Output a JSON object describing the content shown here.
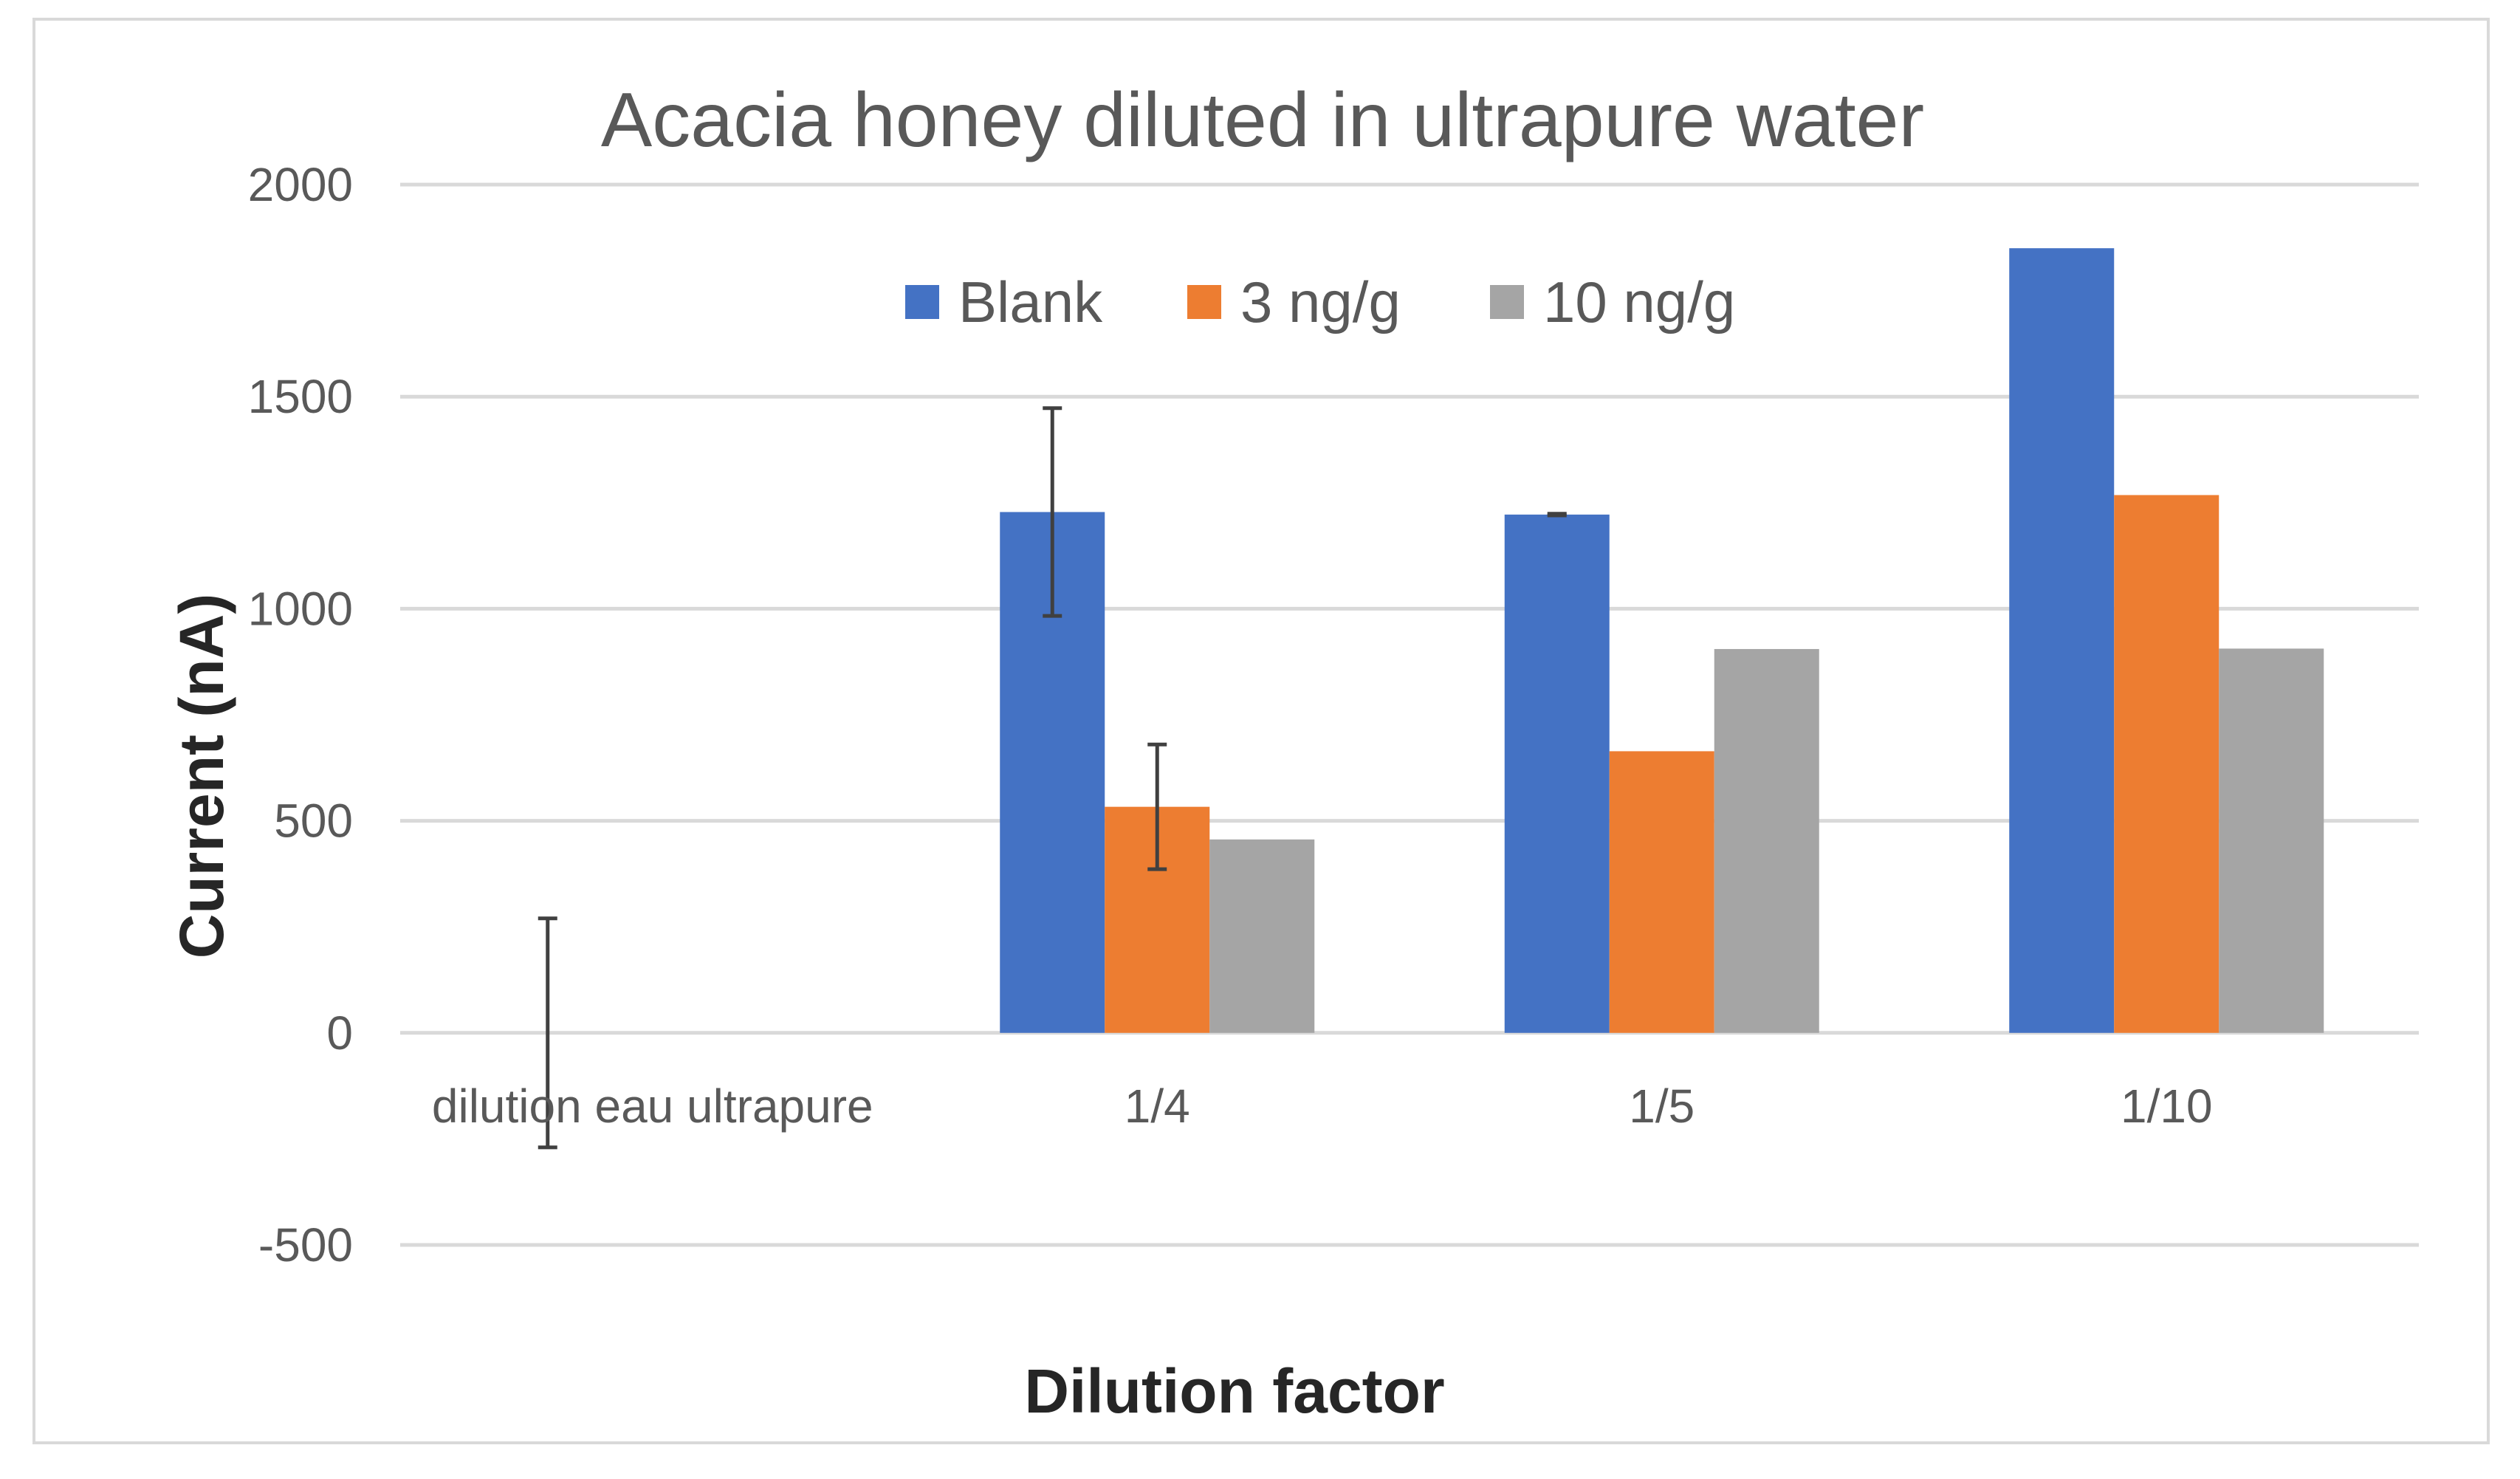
{
  "chart_data": {
    "type": "bar",
    "title": "Acacia honey diluted in ultrapure water",
    "xlabel": "Dilution factor",
    "ylabel": "Current (nA)",
    "ylim": [
      -500,
      2000
    ],
    "yticks": [
      2000,
      1500,
      1000,
      500,
      0,
      -500
    ],
    "categories": [
      "dilution eau ultrapure",
      "1/4",
      "1/5",
      "1/10"
    ],
    "series": [
      {
        "name": "Blank",
        "color": "#4472c4",
        "values": [
          0,
          1228,
          1222,
          1850
        ],
        "errors": [
          270,
          245,
          2,
          0
        ]
      },
      {
        "name": "3 ng/g",
        "color": "#ed7d31",
        "values": [
          0,
          533,
          664,
          1268
        ],
        "errors": [
          0,
          147,
          0,
          0
        ]
      },
      {
        "name": "10 ng/g",
        "color": "#a5a5a5",
        "values": [
          0,
          456,
          905,
          906
        ],
        "errors": [
          0,
          0,
          0,
          0
        ]
      }
    ],
    "grid": true,
    "legend_position": "top-center"
  }
}
